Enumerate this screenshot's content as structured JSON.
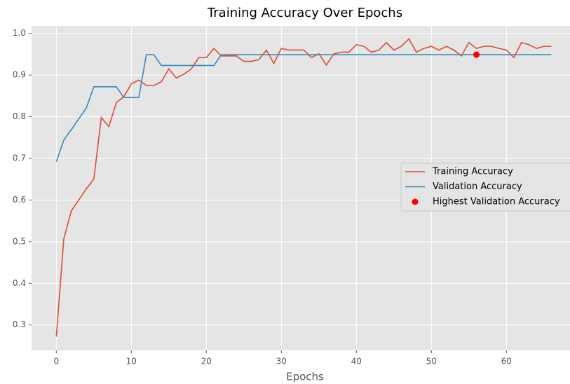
{
  "chart_data": {
    "type": "line",
    "title": "Training Accuracy Over Epochs",
    "xlabel": "Epochs",
    "x": [
      0,
      1,
      2,
      3,
      4,
      5,
      6,
      7,
      8,
      9,
      10,
      11,
      12,
      13,
      14,
      15,
      16,
      17,
      18,
      19,
      20,
      21,
      22,
      23,
      24,
      25,
      26,
      27,
      28,
      29,
      30,
      31,
      32,
      33,
      34,
      35,
      36,
      37,
      38,
      39,
      40,
      41,
      42,
      43,
      44,
      45,
      46,
      47,
      48,
      49,
      50,
      51,
      52,
      53,
      54,
      55,
      56,
      57,
      58,
      59,
      60,
      61,
      62,
      63,
      64,
      65,
      66
    ],
    "series": [
      {
        "name": "Training Accuracy",
        "color": "#e24a33",
        "values": [
          0.272,
          0.507,
          0.574,
          0.6,
          0.627,
          0.65,
          0.798,
          0.776,
          0.834,
          0.848,
          0.879,
          0.888,
          0.875,
          0.875,
          0.884,
          0.915,
          0.893,
          0.902,
          0.915,
          0.942,
          0.942,
          0.964,
          0.946,
          0.946,
          0.946,
          0.933,
          0.933,
          0.937,
          0.96,
          0.928,
          0.964,
          0.96,
          0.96,
          0.96,
          0.942,
          0.951,
          0.924,
          0.951,
          0.955,
          0.955,
          0.973,
          0.969,
          0.955,
          0.96,
          0.978,
          0.96,
          0.969,
          0.987,
          0.955,
          0.964,
          0.969,
          0.96,
          0.969,
          0.96,
          0.946,
          0.978,
          0.964,
          0.969,
          0.969,
          0.964,
          0.96,
          0.942,
          0.978,
          0.973,
          0.964,
          0.969,
          0.969
        ]
      },
      {
        "name": "Validation Accuracy",
        "color": "#348abd",
        "values": [
          0.692,
          0.744,
          0.769,
          0.795,
          0.821,
          0.872,
          0.872,
          0.872,
          0.872,
          0.846,
          0.846,
          0.846,
          0.949,
          0.949,
          0.923,
          0.923,
          0.923,
          0.923,
          0.923,
          0.923,
          0.923,
          0.923,
          0.949,
          0.949,
          0.949,
          0.949,
          0.949,
          0.949,
          0.949,
          0.949,
          0.949,
          0.949,
          0.949,
          0.949,
          0.949,
          0.949,
          0.949,
          0.949,
          0.949,
          0.949,
          0.949,
          0.949,
          0.949,
          0.949,
          0.949,
          0.949,
          0.949,
          0.949,
          0.949,
          0.949,
          0.949,
          0.949,
          0.949,
          0.949,
          0.949,
          0.949,
          0.949,
          0.949,
          0.949,
          0.949,
          0.949,
          0.949,
          0.949,
          0.949,
          0.949,
          0.949,
          0.949
        ]
      }
    ],
    "highlight": {
      "name": "Highest Validation Accuracy",
      "x": 56,
      "y": 0.949,
      "color": "#ff0000"
    },
    "xlim": [
      -3.3,
      69.3
    ],
    "ylim": [
      0.239,
      1.018
    ],
    "xticks": [
      0,
      10,
      20,
      30,
      40,
      50,
      60
    ],
    "yticks": [
      {
        "value": 0.3,
        "label": "0.3"
      },
      {
        "value": 0.4,
        "label": "0.4"
      },
      {
        "value": 0.5,
        "label": "0.5"
      },
      {
        "value": 0.6,
        "label": "0.6"
      },
      {
        "value": 0.7,
        "label": "0.7"
      },
      {
        "value": 0.8,
        "label": "0.8"
      },
      {
        "value": 0.9,
        "label": "0.9"
      },
      {
        "value": 1.0,
        "label": "1.0"
      }
    ],
    "grid": true,
    "legend": "center right"
  }
}
